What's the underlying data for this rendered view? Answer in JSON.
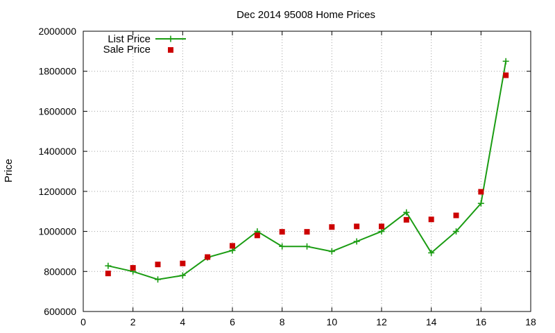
{
  "chart_data": {
    "type": "line",
    "title": "Dec 2014 95008 Home Prices",
    "xlabel": "",
    "ylabel": "Price",
    "xlim": [
      0,
      18
    ],
    "ylim": [
      600000,
      2000000
    ],
    "xticks": [
      0,
      2,
      4,
      6,
      8,
      10,
      12,
      14,
      16,
      18
    ],
    "yticks": [
      600000,
      800000,
      1000000,
      1200000,
      1400000,
      1600000,
      1800000,
      2000000
    ],
    "grid": true,
    "legend_position": "top-left",
    "x": [
      1,
      2,
      3,
      4,
      5,
      6,
      7,
      8,
      9,
      10,
      11,
      12,
      13,
      14,
      15,
      16,
      17
    ],
    "series": [
      {
        "name": "List Price",
        "style": "line-with-plus-markers",
        "color": "#1a9c12",
        "values": [
          828000,
          800000,
          760000,
          780000,
          870000,
          905000,
          1000000,
          925000,
          925000,
          900000,
          950000,
          1000000,
          1095000,
          893000,
          1000000,
          1140000,
          1850000
        ]
      },
      {
        "name": "Sale Price",
        "style": "square-markers",
        "color": "#cc0000",
        "values": [
          790000,
          818000,
          835000,
          840000,
          872000,
          928000,
          980000,
          998000,
          998000,
          1022000,
          1025000,
          1025000,
          1058000,
          1060000,
          1080000,
          1198000,
          1780000
        ]
      }
    ]
  }
}
